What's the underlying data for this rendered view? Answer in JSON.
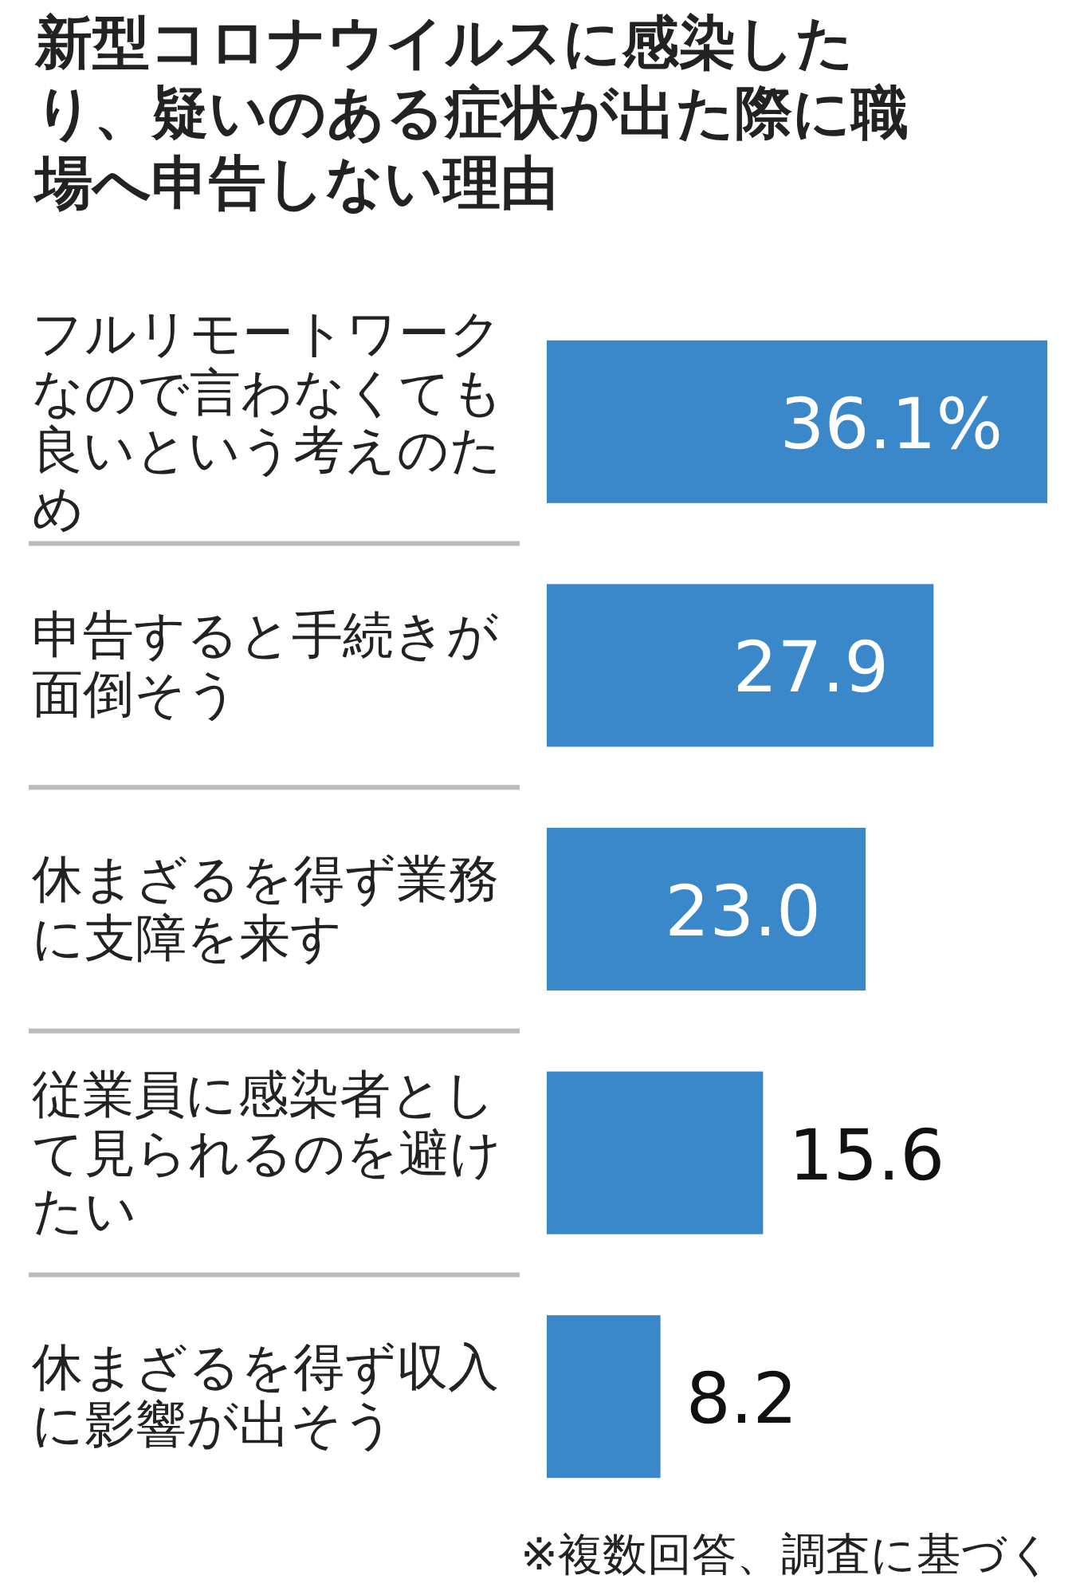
{
  "chart_data": {
    "type": "bar",
    "orientation": "horizontal",
    "title": "新型コロナウイルスに感染したり、疑いのある症状が出た際に職場へ申告しない理由",
    "categories": [
      "フルリモートワークなので言わなくても良いという考えのため",
      "申告すると手続きが面倒そう",
      "休まざるを得ず業務に支障を来す",
      "従業員に感染者として見られるのを避けたい",
      "休まざるを得ず収入に影響が出そう"
    ],
    "values": [
      36.1,
      27.9,
      23.0,
      15.6,
      8.2
    ],
    "value_labels": [
      "36.1%",
      "27.9",
      "23.0",
      "15.6",
      "8.2"
    ],
    "color": "#3a87c9",
    "annotations": [
      "※複数回答、調査に基づく"
    ]
  }
}
